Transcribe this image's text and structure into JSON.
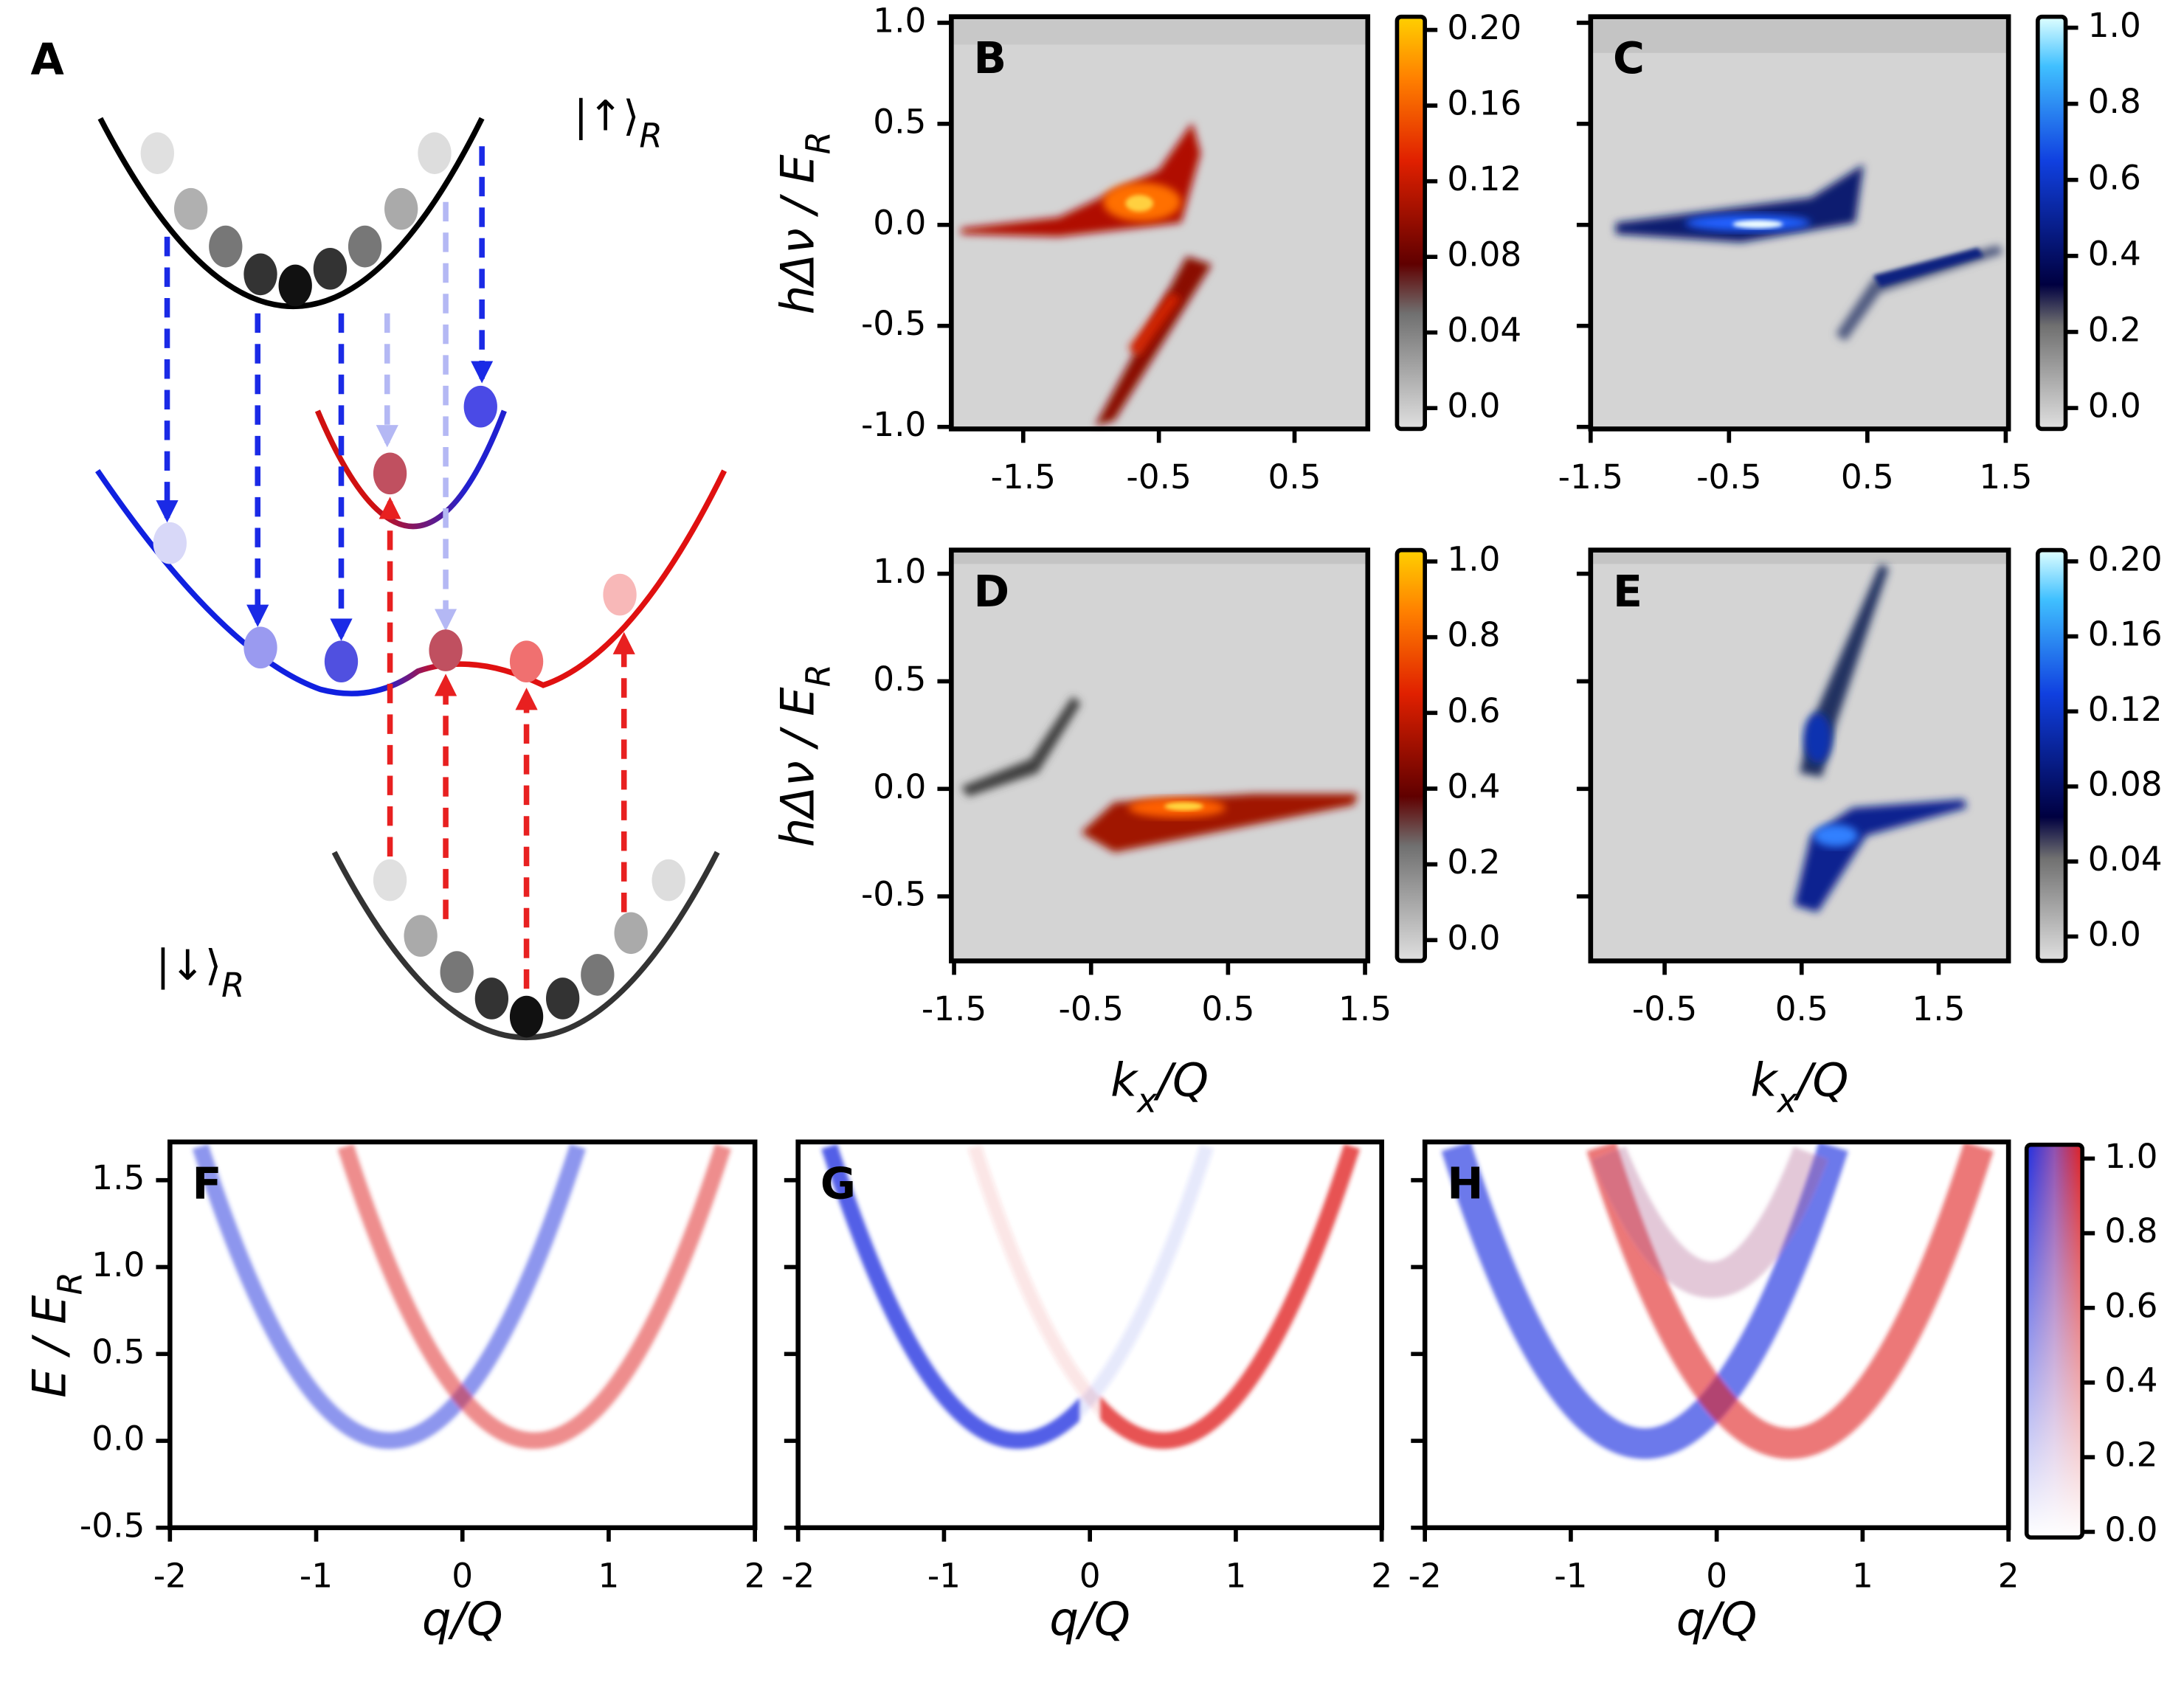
{
  "panel_a": {
    "label": "A",
    "up_state": {
      "text": "|↑⟩",
      "sub": "R"
    },
    "down_state": {
      "text": "|↓⟩",
      "sub": "R"
    }
  },
  "chart_data": [
    {
      "type": "heatmap",
      "label": "B",
      "xlim": [
        -2.03,
        1.04
      ],
      "ylim": [
        -1.01,
        1.03
      ],
      "xticks": [
        -1.5,
        -0.5,
        0.5
      ],
      "yticks": [
        {
          "value": 1,
          "label": "1.0"
        },
        0.5,
        {
          "value": 0,
          "label": "0.0"
        },
        -0.5,
        {
          "value": -1,
          "label": "-1.0"
        }
      ],
      "ytick_labels": true,
      "y_label": {
        "text": "hΔν / E",
        "sub": "R"
      },
      "colorbar": {
        "colormap": "hot",
        "lim": [
          -0.011,
          0.207
        ],
        "ticks": [
          {
            "value": 0.2,
            "label": "0.20"
          },
          0.16,
          0.12,
          0.08,
          0.04,
          {
            "value": 0,
            "label": "0.0"
          }
        ]
      }
    },
    {
      "type": "heatmap",
      "label": "C",
      "xlim": [
        -1.5,
        1.52
      ],
      "ylim": [
        -1.01,
        1.03
      ],
      "xticks": [
        -1.5,
        -0.5,
        0.5,
        1.5
      ],
      "yticks": [
        1,
        0.5,
        0,
        -0.5,
        -1
      ],
      "ytick_labels": false,
      "colorbar": {
        "colormap": "ice",
        "lim": [
          -0.055,
          1.029
        ],
        "ticks": [
          {
            "value": 1,
            "label": "1.0"
          },
          0.8,
          0.6,
          0.4,
          0.2,
          {
            "value": 0,
            "label": "0.0"
          }
        ]
      }
    },
    {
      "type": "heatmap",
      "label": "D",
      "xlim": [
        -1.52,
        1.52
      ],
      "ylim": [
        -0.8,
        1.11
      ],
      "xticks": [
        -1.5,
        -0.5,
        0.5,
        1.5
      ],
      "yticks": [
        {
          "value": 1,
          "label": "1.0"
        },
        0.5,
        {
          "value": 0,
          "label": "0.0"
        },
        -0.5
      ],
      "ytick_labels": true,
      "x_label": {
        "text": "k",
        "sub": "x",
        "after": "/Q"
      },
      "y_label": {
        "text": "hΔν / E",
        "sub": "R"
      },
      "colorbar": {
        "colormap": "hot",
        "lim": [
          -0.055,
          1.03
        ],
        "ticks": [
          {
            "value": 1,
            "label": "1.0"
          },
          0.8,
          0.6,
          0.4,
          0.2,
          {
            "value": 0,
            "label": "0.0"
          }
        ]
      }
    },
    {
      "type": "heatmap",
      "label": "E",
      "xlim": [
        -1.04,
        2.01
      ],
      "ylim": [
        -0.8,
        1.11
      ],
      "xticks": [
        -0.5,
        0.5,
        1.5
      ],
      "yticks": [
        1,
        0.5,
        0,
        -0.5
      ],
      "ytick_labels": false,
      "x_label": {
        "text": "k",
        "sub": "x",
        "after": "/Q"
      },
      "colorbar": {
        "colormap": "ice",
        "lim": [
          -0.013,
          0.206
        ],
        "ticks": [
          {
            "value": 0.2,
            "label": "0.20"
          },
          0.16,
          0.12,
          0.08,
          0.04,
          {
            "value": 0,
            "label": "0.0"
          }
        ]
      }
    },
    {
      "type": "heatmap",
      "label": "F",
      "xlim": [
        -2,
        2
      ],
      "ylim": [
        -0.5,
        1.72
      ],
      "xticks": [
        -2,
        -1,
        0,
        1,
        2
      ],
      "yticks": [
        1.5,
        {
          "value": 1,
          "label": "1.0"
        },
        0.5,
        {
          "value": 0,
          "label": "0.0"
        },
        -0.5
      ],
      "ytick_labels": true,
      "x_label": {
        "text": "q/Q"
      },
      "y_label": {
        "text": "E / E",
        "sub": "R"
      }
    },
    {
      "type": "heatmap",
      "label": "G",
      "xlim": [
        -2,
        2
      ],
      "ylim": [
        -0.5,
        1.72
      ],
      "xticks": [
        -2,
        -1,
        0,
        1,
        2
      ],
      "yticks": [
        1.5,
        1,
        0.5,
        0,
        -0.5
      ],
      "ytick_labels": false,
      "x_label": {
        "text": "q/Q"
      }
    },
    {
      "type": "heatmap",
      "label": "H",
      "xlim": [
        -2,
        2
      ],
      "ylim": [
        -0.5,
        1.72
      ],
      "xticks": [
        -2,
        -1,
        0,
        1,
        2
      ],
      "yticks": [
        1.5,
        1,
        0.5,
        0,
        -0.5
      ],
      "ytick_labels": false,
      "x_label": {
        "text": "q/Q"
      },
      "colorbar": {
        "colormap": "bwr",
        "lim": [
          -0.015,
          1.037
        ],
        "ticks": [
          {
            "value": 1,
            "label": "1.0"
          },
          0.8,
          0.6,
          0.4,
          0.2,
          {
            "value": 0,
            "label": "0.0"
          }
        ]
      }
    }
  ]
}
